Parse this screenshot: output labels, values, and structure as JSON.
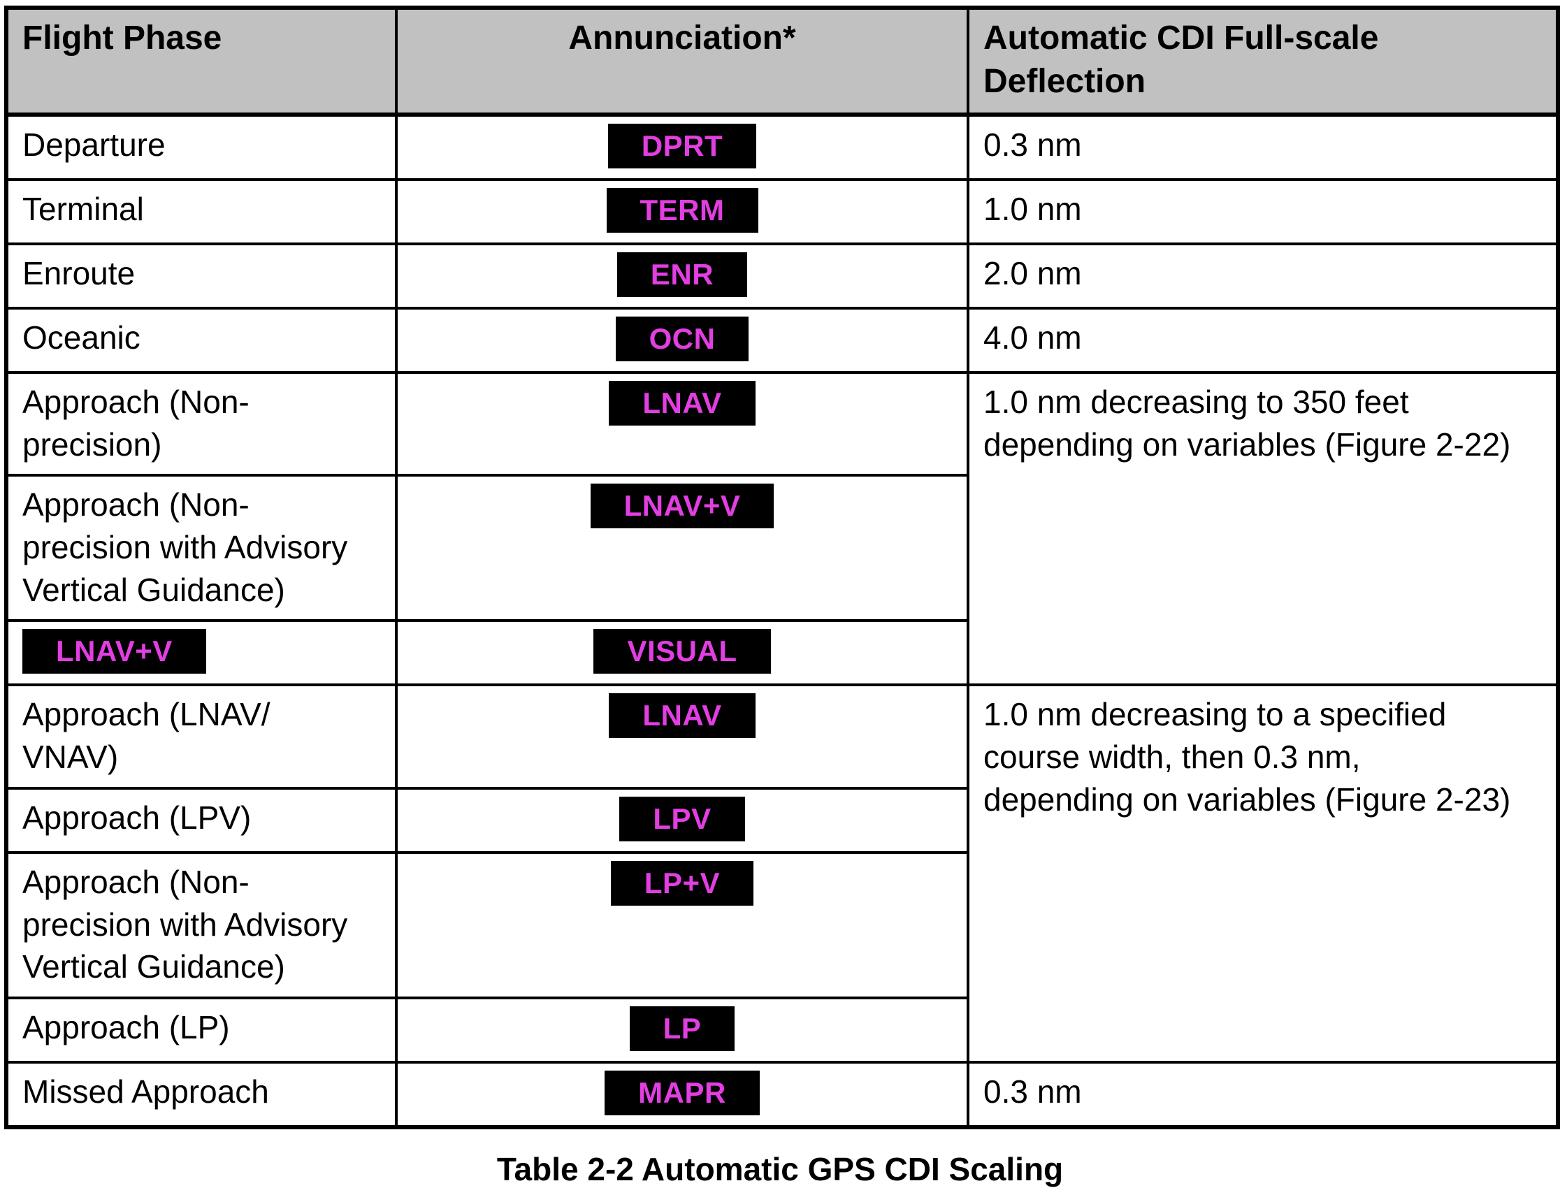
{
  "colors": {
    "annunciation_bg": "#000000",
    "annunciation_text": "#e23ee2",
    "header_bg": "#c1c1c1",
    "border": "#000000"
  },
  "table": {
    "headers": {
      "flight_phase": "Flight Phase",
      "annunciation": "Annunciation*",
      "deflection": "Automatic CDI Full-scale\nDeflection"
    },
    "rows": [
      {
        "phase": "Departure",
        "annunciation": "DPRT",
        "deflection": "0.3 nm"
      },
      {
        "phase": "Terminal",
        "annunciation": "TERM",
        "deflection": "1.0 nm"
      },
      {
        "phase": "Enroute",
        "annunciation": "ENR",
        "deflection": "2.0 nm"
      },
      {
        "phase": "Oceanic",
        "annunciation": "OCN",
        "deflection": "4.0 nm"
      },
      {
        "phase": "Approach (Non-\nprecision)",
        "annunciation": "LNAV",
        "deflection": "1.0 nm decreasing to 350 feet\ndepending on variables (Figure 2-22)"
      },
      {
        "phase": "Approach (Non-\nprecision with Advisory\nVertical Guidance)",
        "annunciation": "LNAV+V"
      },
      {
        "phase_badge": "LNAV+V",
        "annunciation": "VISUAL"
      },
      {
        "phase": "Approach (LNAV/\nVNAV)",
        "annunciation": "LNAV",
        "deflection": "1.0 nm decreasing to a specified\ncourse width, then 0.3 nm,\ndepending on variables (Figure 2-23)"
      },
      {
        "phase": "Approach (LPV)",
        "annunciation": "LPV"
      },
      {
        "phase": "Approach (Non-\nprecision with Advisory\nVertical Guidance)",
        "annunciation": "LP+V"
      },
      {
        "phase": "Approach (LP)",
        "annunciation": "LP"
      },
      {
        "phase": "Missed Approach",
        "annunciation": "MAPR",
        "deflection": "0.3 nm"
      }
    ]
  },
  "caption": "Table 2-2 Automatic GPS CDI Scaling"
}
